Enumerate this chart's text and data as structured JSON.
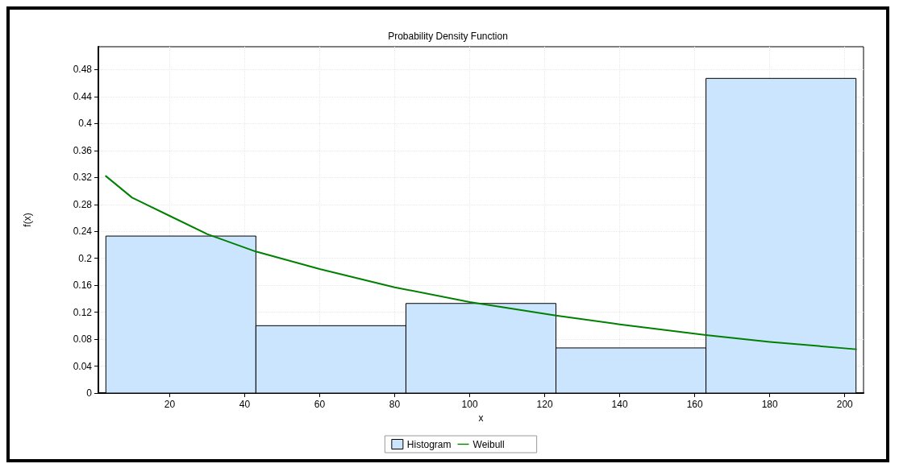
{
  "chart_data": {
    "type": "histogram",
    "title": "Probability Density Function",
    "xlabel": "x",
    "ylabel": "f(x)",
    "series": [
      {
        "name": "Histogram",
        "color": "#cce5ff",
        "bins": [
          3,
          43,
          83,
          123,
          163,
          203
        ],
        "values": [
          0.233,
          0.1,
          0.133,
          0.067,
          0.467
        ]
      },
      {
        "name": "Weibull",
        "type": "line",
        "color": "#008000",
        "x": [
          3,
          10,
          20,
          30,
          43,
          60,
          80,
          100,
          123,
          140,
          163,
          180,
          203
        ],
        "values": [
          0.322,
          0.29,
          0.263,
          0.236,
          0.21,
          0.184,
          0.157,
          0.135,
          0.115,
          0.102,
          0.086,
          0.076,
          0.065
        ]
      }
    ],
    "xlim": [
      1,
      205
    ],
    "xticks": [
      20,
      40,
      60,
      80,
      100,
      120,
      140,
      160,
      180,
      200
    ],
    "ylim": [
      0,
      0.514
    ],
    "yticks": [
      0,
      0.04,
      0.08,
      0.12,
      0.16,
      0.2,
      0.24,
      0.28,
      0.32,
      0.36,
      0.4,
      0.44,
      0.48
    ],
    "grid": true,
    "legend": "bottom",
    "line_style": "solid"
  }
}
